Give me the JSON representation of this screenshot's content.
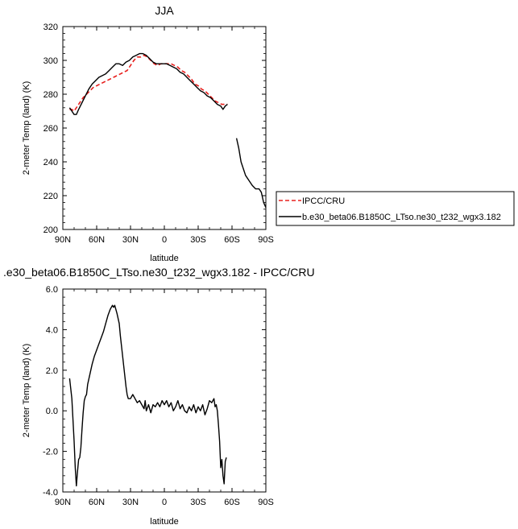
{
  "chart_data": [
    {
      "type": "line",
      "title": "JJA",
      "xlabel": "latitude",
      "ylabel": "2-meter Temp (land) (K)",
      "xlim": [
        90,
        -90
      ],
      "ylim": [
        200,
        320
      ],
      "x_tick_values": [
        90,
        60,
        30,
        0,
        -30,
        -60,
        -90
      ],
      "x_tick_labels": [
        "90N",
        "60N",
        "30N",
        "0",
        "30S",
        "60S",
        "90S"
      ],
      "y_tick_values": [
        200,
        220,
        240,
        260,
        280,
        300,
        320
      ],
      "y_tick_labels": [
        "200",
        "220",
        "240",
        "260",
        "280",
        "300",
        "320"
      ],
      "legend": {
        "position": "right",
        "entries": [
          "IPCC/CRU",
          "b.e30_beta06.B1850C_LTso.ne30_t232_wgx3.182"
        ]
      },
      "series": [
        {
          "name": "IPCC/CRU",
          "color": "#e8201e",
          "dash": "dashed",
          "segments": [
            [
              [
                84,
                271
              ],
              [
                82,
                271
              ],
              [
                80,
                270
              ],
              [
                78,
                272
              ],
              [
                75,
                275
              ],
              [
                72,
                278
              ],
              [
                69,
                280
              ],
              [
                66,
                282
              ],
              [
                63,
                284
              ],
              [
                60,
                285
              ],
              [
                57,
                286
              ],
              [
                54,
                287
              ],
              [
                51,
                288
              ],
              [
                48,
                289
              ],
              [
                45,
                290
              ],
              [
                42,
                291
              ],
              [
                39,
                292
              ],
              [
                36,
                293
              ],
              [
                33,
                294
              ],
              [
                30,
                297
              ],
              [
                27,
                300
              ],
              [
                24,
                302
              ],
              [
                21,
                302
              ],
              [
                18,
                303
              ],
              [
                15,
                302
              ],
              [
                12,
                300
              ],
              [
                9,
                298
              ],
              [
                6,
                297
              ],
              [
                3,
                298
              ],
              [
                0,
                298
              ],
              [
                -3,
                298
              ],
              [
                -6,
                298
              ],
              [
                -9,
                297
              ],
              [
                -12,
                296
              ],
              [
                -15,
                294
              ],
              [
                -18,
                293
              ],
              [
                -21,
                291
              ],
              [
                -24,
                289
              ],
              [
                -27,
                286
              ],
              [
                -30,
                285
              ],
              [
                -33,
                283
              ],
              [
                -36,
                282
              ],
              [
                -39,
                280
              ],
              [
                -42,
                278
              ],
              [
                -45,
                276
              ],
              [
                -48,
                275
              ],
              [
                -51,
                274
              ],
              [
                -54,
                274
              ],
              [
                -56,
                274
              ]
            ]
          ]
        },
        {
          "name": "b.e30_beta06.B1850C_LTso.ne30_t232_wgx3.182",
          "color": "#000000",
          "dash": "solid",
          "segments": [
            [
              [
                84,
                272
              ],
              [
                82,
                270
              ],
              [
                80,
                268
              ],
              [
                78,
                268
              ],
              [
                76,
                271
              ],
              [
                73,
                275
              ],
              [
                70,
                279
              ],
              [
                67,
                283
              ],
              [
                64,
                286
              ],
              [
                61,
                288
              ],
              [
                58,
                290
              ],
              [
                55,
                291
              ],
              [
                52,
                292
              ],
              [
                49,
                294
              ],
              [
                46,
                296
              ],
              [
                43,
                298
              ],
              [
                40,
                298
              ],
              [
                37,
                297
              ],
              [
                34,
                299
              ],
              [
                31,
                300
              ],
              [
                28,
                302
              ],
              [
                25,
                303
              ],
              [
                22,
                304
              ],
              [
                19,
                304
              ],
              [
                16,
                303
              ],
              [
                13,
                301
              ],
              [
                10,
                299
              ],
              [
                7,
                298
              ],
              [
                4,
                298
              ],
              [
                1,
                298
              ],
              [
                -2,
                298
              ],
              [
                -5,
                297
              ],
              [
                -8,
                296
              ],
              [
                -11,
                295
              ],
              [
                -14,
                293
              ],
              [
                -17,
                292
              ],
              [
                -20,
                290
              ],
              [
                -23,
                288
              ],
              [
                -26,
                286
              ],
              [
                -29,
                284
              ],
              [
                -32,
                282
              ],
              [
                -35,
                281
              ],
              [
                -38,
                279
              ],
              [
                -41,
                278
              ],
              [
                -44,
                276
              ],
              [
                -47,
                274
              ],
              [
                -50,
                273
              ],
              [
                -52,
                271
              ],
              [
                -54,
                273
              ],
              [
                -56,
                274
              ]
            ],
            [
              [
                -64,
                254
              ],
              [
                -66,
                248
              ],
              [
                -68,
                240
              ],
              [
                -70,
                236
              ],
              [
                -72,
                232
              ],
              [
                -75,
                229
              ],
              [
                -78,
                226
              ],
              [
                -81,
                224
              ],
              [
                -84,
                224
              ],
              [
                -86,
                222
              ],
              [
                -88,
                216
              ],
              [
                -90,
                213
              ]
            ]
          ]
        }
      ]
    },
    {
      "type": "line",
      "title": ".e30_beta06.B1850C_LTso.ne30_t232_wgx3.182 - IPCC/CRU",
      "xlabel": "latitude",
      "ylabel": "2-meter Temp (land) (K)",
      "xlim": [
        90,
        -90
      ],
      "ylim": [
        -4.0,
        6.0
      ],
      "x_tick_values": [
        90,
        60,
        30,
        0,
        -30,
        -60,
        -90
      ],
      "x_tick_labels": [
        "90N",
        "60N",
        "30N",
        "0",
        "30S",
        "60S",
        "90S"
      ],
      "y_tick_values": [
        -4.0,
        -2.0,
        0.0,
        2.0,
        4.0,
        6.0
      ],
      "y_tick_labels": [
        "-4.0",
        "-2.0",
        "0.0",
        "2.0",
        "4.0",
        "6.0"
      ],
      "series": [
        {
          "color": "#000000",
          "dash": "solid",
          "segments": [
            [
              [
                84,
                1.6
              ],
              [
                82,
                0.6
              ],
              [
                80,
                -1.5
              ],
              [
                79,
                -2.8
              ],
              [
                78,
                -3.7
              ],
              [
                77,
                -3.0
              ],
              [
                76,
                -2.4
              ],
              [
                75,
                -2.3
              ],
              [
                74,
                -1.8
              ],
              [
                73,
                -0.9
              ],
              [
                72,
                -0.1
              ],
              [
                71,
                0.5
              ],
              [
                70,
                0.7
              ],
              [
                69,
                0.8
              ],
              [
                68,
                1.3
              ],
              [
                66,
                1.8
              ],
              [
                64,
                2.3
              ],
              [
                62,
                2.7
              ],
              [
                60,
                3.0
              ],
              [
                58,
                3.3
              ],
              [
                56,
                3.6
              ],
              [
                54,
                3.9
              ],
              [
                52,
                4.3
              ],
              [
                50,
                4.7
              ],
              [
                48,
                5.0
              ],
              [
                46,
                5.2
              ],
              [
                45,
                5.1
              ],
              [
                44,
                5.2
              ],
              [
                42,
                4.8
              ],
              [
                40,
                4.3
              ],
              [
                39,
                3.7
              ],
              [
                38,
                3.2
              ],
              [
                37,
                2.7
              ],
              [
                36,
                2.2
              ],
              [
                35,
                1.7
              ],
              [
                34,
                1.2
              ],
              [
                33,
                0.8
              ],
              [
                32,
                0.6
              ],
              [
                30,
                0.6
              ],
              [
                28,
                0.8
              ],
              [
                26,
                0.6
              ],
              [
                24,
                0.4
              ],
              [
                22,
                0.5
              ],
              [
                20,
                0.3
              ],
              [
                18,
                0.1
              ],
              [
                17,
                0.5
              ],
              [
                16,
                0.0
              ],
              [
                14,
                0.3
              ],
              [
                12,
                -0.1
              ],
              [
                10,
                0.3
              ],
              [
                8,
                0.2
              ],
              [
                6,
                0.4
              ],
              [
                4,
                0.2
              ],
              [
                2,
                0.5
              ],
              [
                0,
                0.3
              ],
              [
                -2,
                0.5
              ],
              [
                -4,
                0.2
              ],
              [
                -6,
                0.4
              ],
              [
                -8,
                0.0
              ],
              [
                -10,
                0.2
              ],
              [
                -12,
                0.5
              ],
              [
                -14,
                0.1
              ],
              [
                -16,
                0.3
              ],
              [
                -18,
                0.0
              ],
              [
                -20,
                -0.1
              ],
              [
                -22,
                0.2
              ],
              [
                -24,
                0.0
              ],
              [
                -26,
                0.3
              ],
              [
                -28,
                -0.1
              ],
              [
                -30,
                0.2
              ],
              [
                -32,
                0.0
              ],
              [
                -34,
                0.3
              ],
              [
                -36,
                -0.2
              ],
              [
                -38,
                0.1
              ],
              [
                -40,
                0.5
              ],
              [
                -42,
                0.4
              ],
              [
                -43,
                0.5
              ],
              [
                -44,
                0.6
              ],
              [
                -45,
                0.2
              ],
              [
                -46,
                0.3
              ],
              [
                -47,
                0.0
              ],
              [
                -48,
                -0.7
              ],
              [
                -49,
                -1.5
              ],
              [
                -50,
                -2.8
              ],
              [
                -51,
                -2.4
              ],
              [
                -52,
                -3.2
              ],
              [
                -53,
                -3.6
              ],
              [
                -54,
                -2.5
              ],
              [
                -55,
                -2.3
              ]
            ]
          ]
        }
      ]
    }
  ]
}
